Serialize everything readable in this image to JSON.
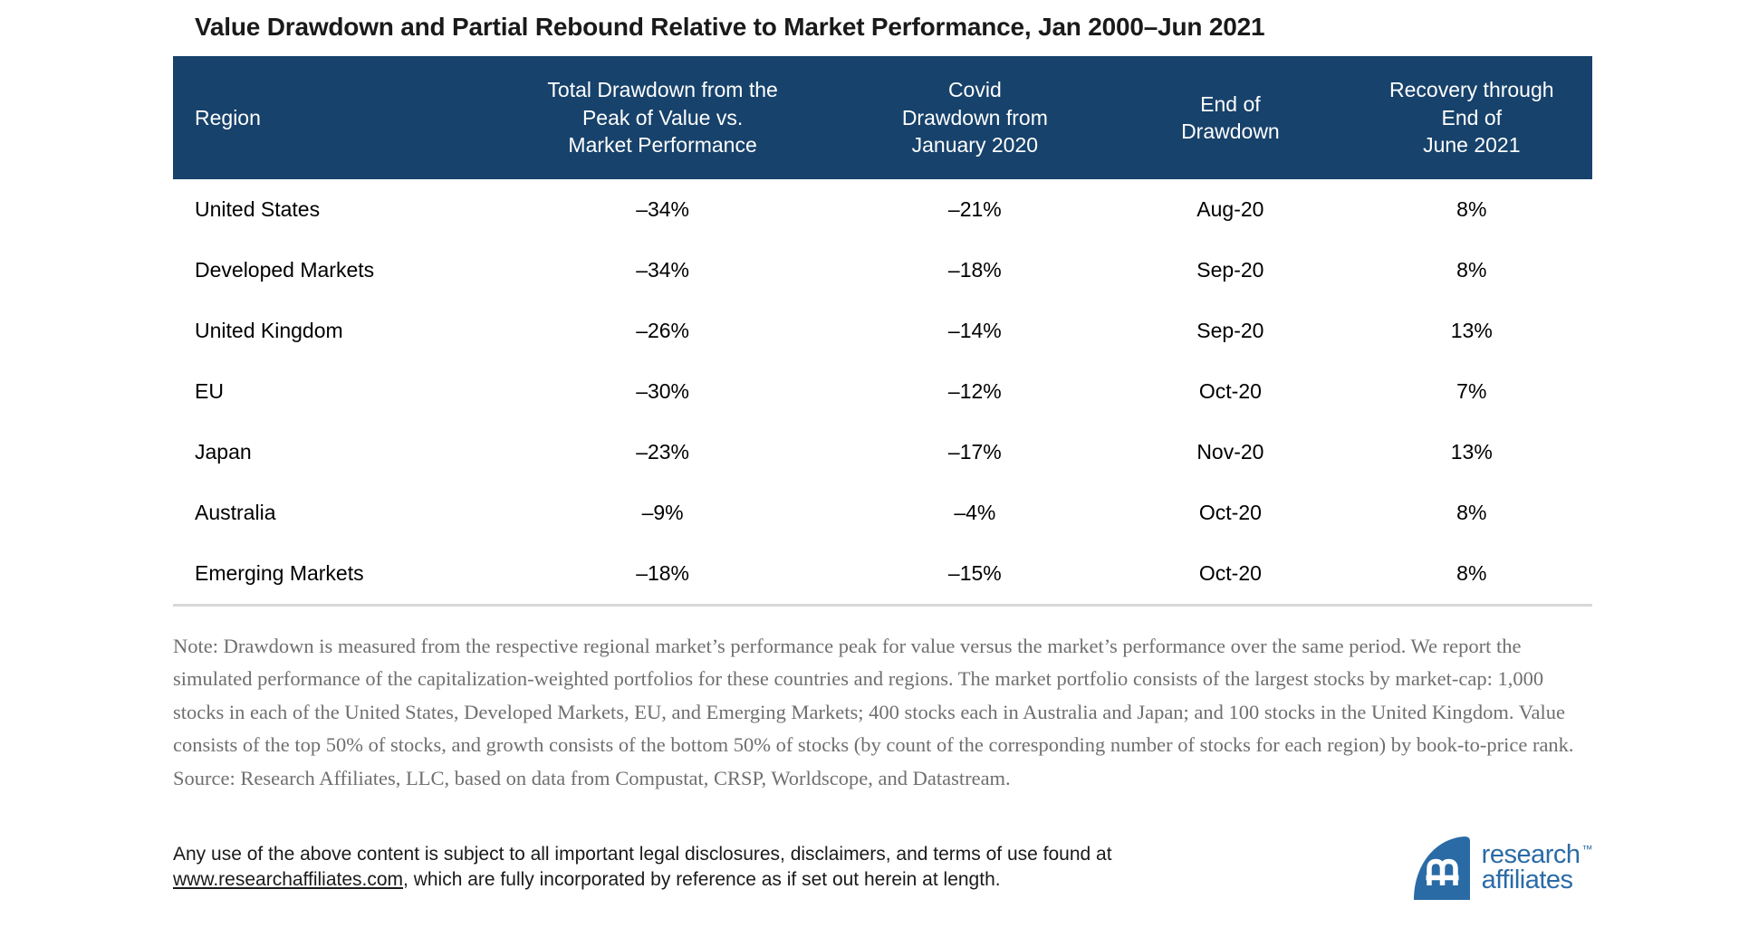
{
  "title": "Value Drawdown and Partial Rebound Relative to Market Performance, Jan 2000–Jun 2021",
  "chart_data": {
    "type": "table",
    "title": "Value Drawdown and Partial Rebound Relative to Market Performance, Jan 2000–Jun 2021",
    "columns": [
      "Region",
      "Total Drawdown from the Peak of Value vs. Market Performance",
      "Covid Drawdown from January 2020",
      "End of Drawdown",
      "Recovery through End of June 2021"
    ],
    "rows": [
      [
        "United States",
        "–34%",
        "–21%",
        "Aug-20",
        "8%"
      ],
      [
        "Developed Markets",
        "–34%",
        "–18%",
        "Sep-20",
        "8%"
      ],
      [
        "United Kingdom",
        "–26%",
        "–14%",
        "Sep-20",
        "13%"
      ],
      [
        "EU",
        "–30%",
        "–12%",
        "Oct-20",
        "7%"
      ],
      [
        "Japan",
        "–23%",
        "–17%",
        "Nov-20",
        "13%"
      ],
      [
        "Australia",
        "–9%",
        "–4%",
        "Oct-20",
        "8%"
      ],
      [
        "Emerging Markets",
        "–18%",
        "–15%",
        "Oct-20",
        "8%"
      ]
    ]
  },
  "table": {
    "columns": [
      "Region",
      "Total Drawdown from the\nPeak of Value vs.\nMarket Performance",
      "Covid\nDrawdown from\nJanuary 2020",
      "End of\nDrawdown",
      "Recovery through\nEnd of\nJune 2021"
    ],
    "rows": [
      [
        "United States",
        "–34%",
        "–21%",
        "Aug-20",
        "8%"
      ],
      [
        "Developed Markets",
        "–34%",
        "–18%",
        "Sep-20",
        "8%"
      ],
      [
        "United Kingdom",
        "–26%",
        "–14%",
        "Sep-20",
        "13%"
      ],
      [
        "EU",
        "–30%",
        "–12%",
        "Oct-20",
        "7%"
      ],
      [
        "Japan",
        "–23%",
        "–17%",
        "Nov-20",
        "13%"
      ],
      [
        "Australia",
        "–9%",
        "–4%",
        "Oct-20",
        "8%"
      ],
      [
        "Emerging Markets",
        "–18%",
        "–15%",
        "Oct-20",
        "8%"
      ]
    ]
  },
  "note": "Note: Drawdown is measured from the respective regional market’s performance peak for value versus the market’s performance over the same period. We report the simulated performance of the capitalization-weighted portfolios for these countries and regions. The market portfolio consists of the largest stocks by market-cap: 1,000 stocks in each of the United States, Developed Markets, EU, and Emerging Markets; 400 stocks each in Australia and Japan; and 100 stocks in the United Kingdom. Value consists of the top 50% of stocks, and growth consists of the bottom 50% of stocks (by count of the corresponding number of stocks for each region) by book-to-price rank.",
  "source": "Source: Research Affiliates, LLC, based on data from Compustat, CRSP, Worldscope, and Datastream.",
  "footer": {
    "legal_prefix": "Any use of the above content is subject to all important legal disclosures, disclaimers, and terms of use found at ",
    "legal_link": "www.researchaffiliates.com",
    "legal_suffix": ", which are fully incorporated by reference as if set out herein at length."
  },
  "logo": {
    "line1": "research",
    "line2": "affiliates",
    "trademark": "™"
  },
  "colors": {
    "header_bg": "#17426B",
    "header_text": "#FFFFFF",
    "logo_blue": "#2A6BA6",
    "note_gray": "#6F6F6F",
    "rule_gray": "#D8D8D8"
  }
}
